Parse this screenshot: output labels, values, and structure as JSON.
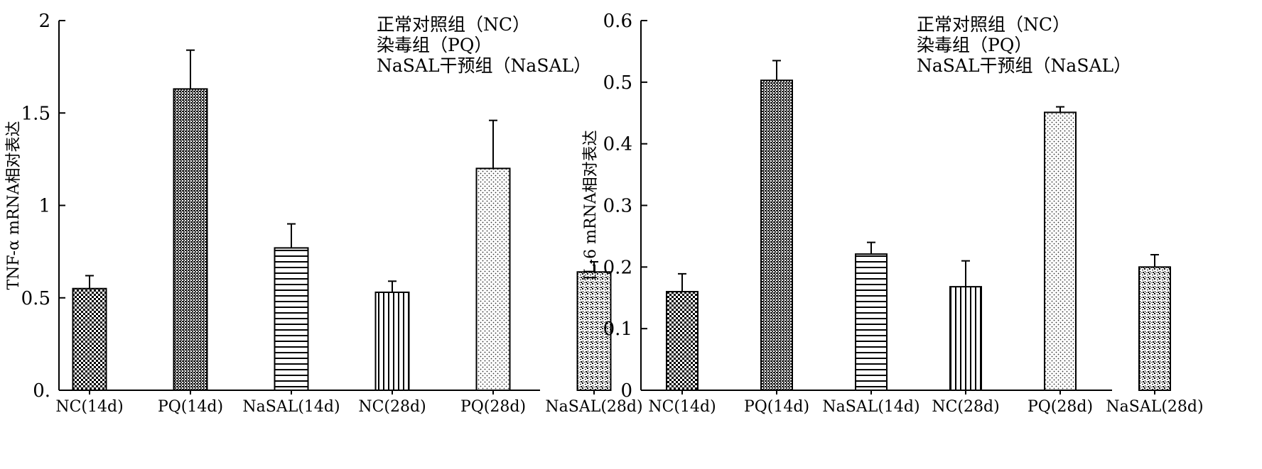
{
  "chart_data": [
    {
      "type": "bar",
      "categories": [
        "NC(14d)",
        "PQ(14d)",
        "NaSAL(14d)",
        "NC(28d)",
        "PQ(28d)",
        "NaSAL(28d)"
      ],
      "values": [
        0.55,
        1.63,
        0.77,
        0.53,
        1.2,
        0.64
      ],
      "errors": [
        0.07,
        0.21,
        0.13,
        0.06,
        0.26,
        0.055
      ],
      "ylabel": "TNF-α mRNA相对表达",
      "ylim": [
        0,
        2
      ],
      "yticks": [
        {
          "value": 0,
          "label": "0."
        },
        {
          "value": 0.5,
          "label": "0.5"
        },
        {
          "value": 1,
          "label": "1"
        },
        {
          "value": 1.5,
          "label": "1.5"
        },
        {
          "value": 2,
          "label": "2"
        }
      ],
      "legend": [
        "正常对照组（NC）",
        "染毒组（PQ）",
        "NaSAL干预组（NaSAL）"
      ],
      "legend_position": "top-right",
      "grid": false
    },
    {
      "type": "bar",
      "categories": [
        "NC(14d)",
        "PQ(14d)",
        "NaSAL(14d)",
        "NC(28d)",
        "PQ(28d)",
        "NaSAL(28d)"
      ],
      "values": [
        0.16,
        0.503,
        0.221,
        0.168,
        0.451,
        0.2
      ],
      "errors": [
        0.029,
        0.032,
        0.019,
        0.042,
        0.009,
        0.02
      ],
      "ylabel": "IL-6 mRNA相对表达",
      "ylim": [
        0,
        0.6
      ],
      "yticks": [
        {
          "value": 0,
          "label": "0"
        },
        {
          "value": 0.1,
          "label": "0.1"
        },
        {
          "value": 0.2,
          "label": "0.2"
        },
        {
          "value": 0.3,
          "label": "0.3"
        },
        {
          "value": 0.4,
          "label": "0.4"
        },
        {
          "value": 0.5,
          "label": "0.5"
        },
        {
          "value": 0.6,
          "label": "0.6"
        }
      ],
      "legend": [
        "正常对照组（NC）",
        "染毒组（PQ）",
        "NaSAL干预组（NaSAL）"
      ],
      "legend_position": "top-right",
      "grid": false
    }
  ]
}
